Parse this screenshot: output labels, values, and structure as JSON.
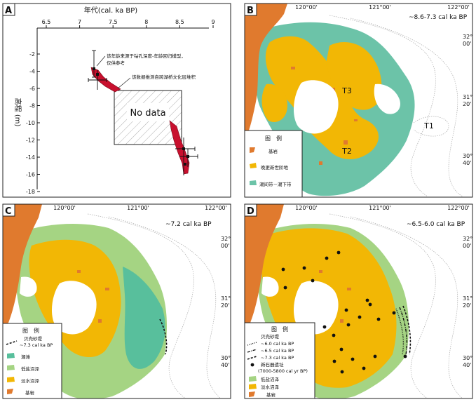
{
  "colors": {
    "bedrock": "#e07a2e",
    "late_pleistocene": "#f2b705",
    "tidal": "#6cc3a8",
    "tidal_flat": "#58bf9c",
    "salt_marsh": "#a5d483",
    "freshwater": "#f2b705",
    "dot": "#111111",
    "red": "#c8102e"
  },
  "panel_a": {
    "letter": "A",
    "xlabel": "年代(cal. ka BP)",
    "ylabel": "高程 (m)",
    "xticks": [
      "6.5",
      "7",
      "7.5",
      "8",
      "8.5",
      "9"
    ],
    "yticks": [
      "-2",
      "-4",
      "-6",
      "-8",
      "-10",
      "-12",
      "-14",
      "-16",
      "-18"
    ],
    "note1": "该年龄来源于钻孔深度-年龄回归模型，",
    "note1b": "仅供参考",
    "note2": "该数据推测自跨湖桥文化层堆积",
    "nodata": "No data"
  },
  "panel_b": {
    "letter": "B",
    "period": "~8.6-7.3 cal ka BP",
    "terrace_labels": [
      "T3",
      "T2",
      "T1"
    ],
    "legend_title": "图　例",
    "legend": [
      "基岩",
      "晚更新世阶地",
      "潮间带－潮下带"
    ]
  },
  "panel_c": {
    "letter": "C",
    "period": "~7.2 cal ka BP",
    "legend_title": "图　例",
    "legend": [
      "贝壳砂堤",
      "~7.3 cal ka BP",
      "潮滩",
      "低盐沼泽",
      "淡水沼泽",
      "基岩"
    ]
  },
  "panel_d": {
    "letter": "D",
    "period": "~6.5-6.0 cal ka BP",
    "legend_title": "图　例",
    "legend": [
      "贝壳砂堤",
      "~6.0 cal ka BP",
      "~6.5 cal ka BP",
      "~7.3 cal ka BP",
      "新石器遗址",
      "(7000-5800 cal yr BP)",
      "低盐沼泽",
      "淡水沼泽",
      "基岩"
    ]
  },
  "map_lon_ticks": [
    "120°00'",
    "121°00'",
    "122°00'"
  ],
  "map_lat_ticks": [
    "32°",
    "00'",
    "31°",
    "20'",
    "30°",
    "40'"
  ]
}
